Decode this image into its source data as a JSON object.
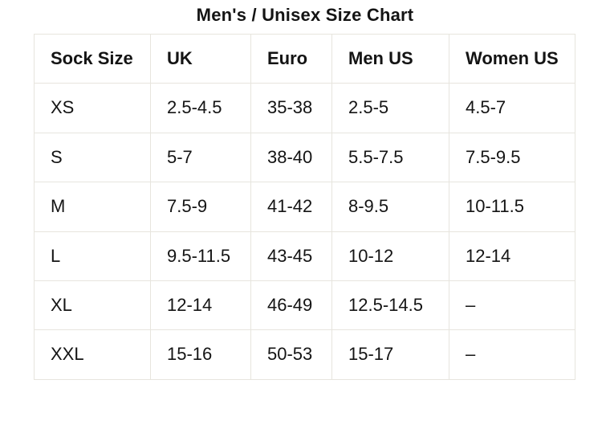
{
  "title": "Men's / Unisex Size Chart",
  "table": {
    "columns": [
      "Sock Size",
      "UK",
      "Euro",
      "Men US",
      "Women US"
    ],
    "rows": [
      [
        "XS",
        "2.5-4.5",
        "35-38",
        "2.5-5",
        "4.5-7"
      ],
      [
        "S",
        "5-7",
        "38-40",
        "5.5-7.5",
        "7.5-9.5"
      ],
      [
        "M",
        "7.5-9",
        "41-42",
        "8-9.5",
        "10-11.5"
      ],
      [
        "L",
        "9.5-11.5",
        "43-45",
        "10-12",
        "12-14"
      ],
      [
        "XL",
        "12-14",
        "46-49",
        "12.5-14.5",
        "–"
      ],
      [
        "XXL",
        "15-16",
        "50-53",
        "15-17",
        "–"
      ]
    ]
  },
  "colors": {
    "background": "#ffffff",
    "text": "#141414",
    "border": "#e7e5de"
  },
  "chart_data": {
    "type": "table",
    "title": "Men's / Unisex Size Chart",
    "columns": [
      "Sock Size",
      "UK",
      "Euro",
      "Men US",
      "Women US"
    ],
    "rows": [
      [
        "XS",
        "2.5-4.5",
        "35-38",
        "2.5-5",
        "4.5-7"
      ],
      [
        "S",
        "5-7",
        "38-40",
        "5.5-7.5",
        "7.5-9.5"
      ],
      [
        "M",
        "7.5-9",
        "41-42",
        "8-9.5",
        "10-11.5"
      ],
      [
        "L",
        "9.5-11.5",
        "43-45",
        "10-12",
        "12-14"
      ],
      [
        "XL",
        "12-14",
        "46-49",
        "12.5-14.5",
        "–"
      ],
      [
        "XXL",
        "15-16",
        "50-53",
        "15-17",
        "–"
      ]
    ],
    "layout_hints": {
      "title_position": "top-center",
      "header_row_bold": true,
      "grid": true,
      "missing_value_symbol": "–"
    }
  }
}
